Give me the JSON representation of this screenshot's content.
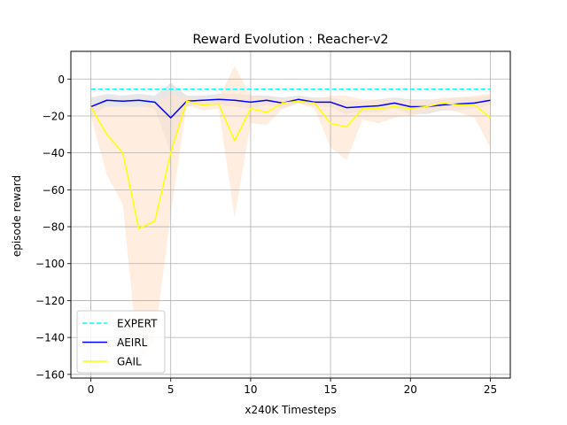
{
  "chart_data": {
    "type": "line",
    "title": "Reward Evolution : Reacher-v2",
    "xlabel": "x240K Timesteps",
    "ylabel": "episode reward",
    "xlim": [
      -1.25,
      26.25
    ],
    "ylim": [
      -162,
      15
    ],
    "xticks": [
      0,
      5,
      10,
      15,
      20,
      25
    ],
    "yticks": [
      0,
      -20,
      -40,
      -60,
      -80,
      -100,
      -120,
      -140,
      -160
    ],
    "grid": true,
    "legend_position": "lower-left",
    "x": [
      0,
      1,
      2,
      3,
      4,
      5,
      6,
      7,
      8,
      9,
      10,
      11,
      12,
      13,
      14,
      15,
      16,
      17,
      18,
      19,
      20,
      21,
      22,
      23,
      24,
      25
    ],
    "series": [
      {
        "name": "EXPERT",
        "color": "#00ffff",
        "style": "dashed",
        "values": [
          -5.5,
          -5.5,
          -5.5,
          -5.5,
          -5.5,
          -5.5,
          -5.5,
          -5.5,
          -5.5,
          -5.5,
          -5.5,
          -5.5,
          -5.5,
          -5.5,
          -5.5,
          -5.5,
          -5.5,
          -5.5,
          -5.5,
          -5.5,
          -5.5,
          -5.5,
          -5.5,
          -5.5,
          -5.5,
          -5.5
        ]
      },
      {
        "name": "AEIRL",
        "color": "#0000ff",
        "style": "solid",
        "values": [
          -15,
          -11.5,
          -12,
          -11.5,
          -12.5,
          -21,
          -12,
          -11.5,
          -11,
          -11.5,
          -12.5,
          -11.5,
          -13,
          -11,
          -12.5,
          -12.5,
          -15.5,
          -15,
          -14.5,
          -13,
          -15,
          -15,
          -14,
          -13.5,
          -13,
          -11.5
        ],
        "band_color": "#d3d3d3",
        "band_upper": [
          -10,
          -8,
          -9,
          -8,
          -9,
          -2,
          -9,
          -9,
          -8,
          -8,
          -9,
          -9,
          -10,
          -9,
          -10,
          -10,
          -12,
          -12,
          -11,
          -10,
          -11,
          -11,
          -11,
          -10,
          -10,
          -9
        ],
        "band_lower": [
          -20,
          -15,
          -15,
          -15,
          -16,
          -40,
          -15,
          -14,
          -14,
          -15,
          -16,
          -14,
          -16,
          -13,
          -15,
          -15,
          -19,
          -18,
          -18,
          -16,
          -19,
          -19,
          -17,
          -17,
          -16,
          -14
        ]
      },
      {
        "name": "GAIL",
        "color": "#ffff00",
        "style": "solid",
        "values": [
          -15,
          -30,
          -40,
          -81,
          -77,
          -40,
          -12,
          -14,
          -13.5,
          -33.5,
          -16,
          -18,
          -13,
          -12,
          -13,
          -24,
          -26,
          -16,
          -16,
          -15,
          -16,
          -15,
          -13,
          -14,
          -14,
          -21
        ],
        "band_color": "#ffe4d0",
        "band_upper": [
          -13,
          -15,
          -15,
          -15,
          -13,
          -8,
          -10,
          -12,
          -10,
          7,
          -9,
          -10,
          -11,
          -10,
          -11,
          -9,
          -9,
          -11,
          -11,
          -11,
          -12,
          -12,
          -10,
          -10,
          -9,
          -8
        ],
        "band_lower": [
          -20,
          -52,
          -68,
          -155,
          -141,
          -73,
          -14,
          -17,
          -16,
          -75,
          -24,
          -25,
          -16,
          -13,
          -16,
          -37,
          -44,
          -22,
          -24,
          -21,
          -20,
          -18,
          -16,
          -18,
          -21,
          -37
        ]
      }
    ]
  }
}
